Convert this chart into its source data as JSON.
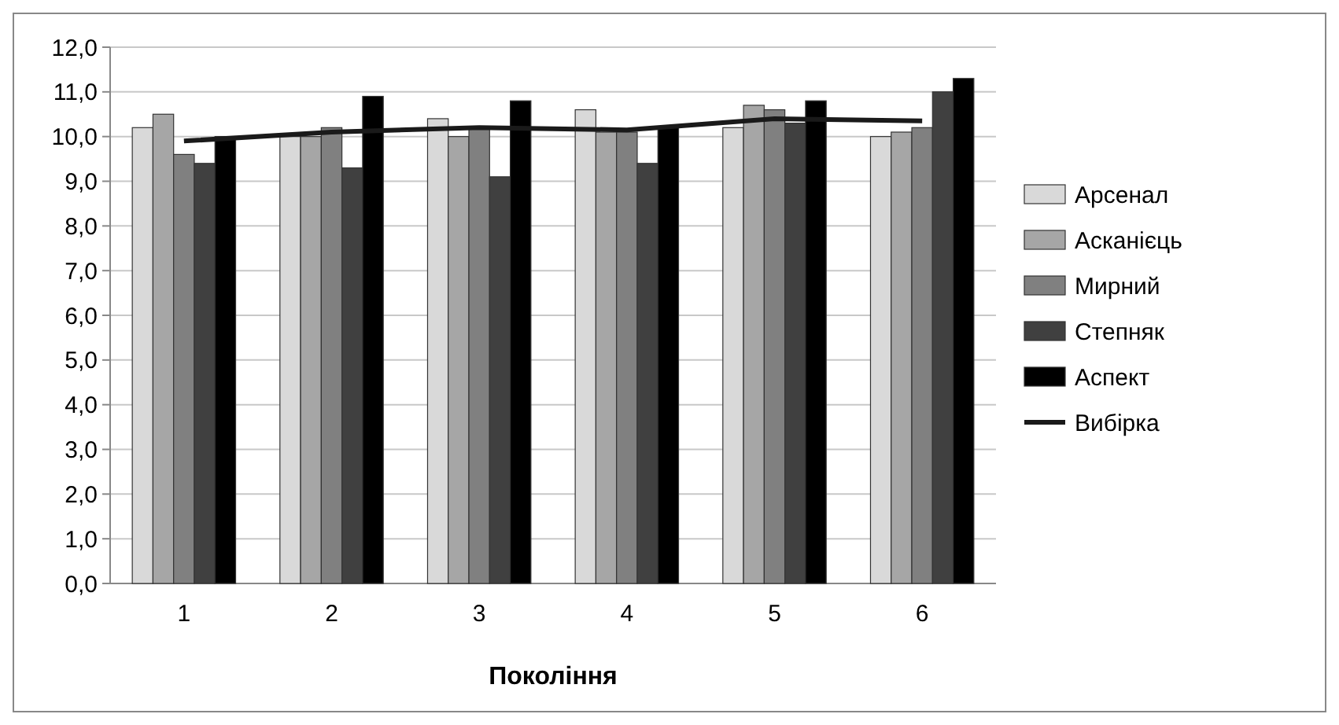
{
  "chart_data": {
    "type": "bar",
    "xlabel": "Покоління",
    "categories": [
      "1",
      "2",
      "3",
      "4",
      "5",
      "6"
    ],
    "ylim": [
      0,
      12
    ],
    "yticks": [
      {
        "value": 0,
        "label": "0,0"
      },
      {
        "value": 1,
        "label": "1,0"
      },
      {
        "value": 2,
        "label": "2,0"
      },
      {
        "value": 3,
        "label": "3,0"
      },
      {
        "value": 4,
        "label": "4,0"
      },
      {
        "value": 5,
        "label": "5,0"
      },
      {
        "value": 6,
        "label": "6,0"
      },
      {
        "value": 7,
        "label": "7,0"
      },
      {
        "value": 8,
        "label": "8,0"
      },
      {
        "value": 9,
        "label": "9,0"
      },
      {
        "value": 10,
        "label": "10,0"
      },
      {
        "value": 11,
        "label": "11,0"
      },
      {
        "value": 12,
        "label": "12,0"
      }
    ],
    "grid": "y",
    "legend": "right",
    "series": [
      {
        "name": "Арсенал",
        "color": "#d9d9d9",
        "values": [
          10.2,
          10.0,
          10.4,
          10.6,
          10.2,
          10.0
        ]
      },
      {
        "name": "Асканієць",
        "color": "#a6a6a6",
        "values": [
          10.5,
          10.0,
          10.0,
          10.1,
          10.7,
          10.1
        ]
      },
      {
        "name": "Мирний",
        "color": "#808080",
        "values": [
          9.6,
          10.2,
          10.2,
          10.1,
          10.6,
          10.2
        ]
      },
      {
        "name": "Степняк",
        "color": "#404040",
        "values": [
          9.4,
          9.3,
          9.1,
          9.4,
          10.3,
          11.0
        ]
      },
      {
        "name": "Аспект",
        "color": "#000000",
        "values": [
          10.0,
          10.9,
          10.8,
          10.2,
          10.8,
          11.3
        ]
      },
      {
        "name": "Вибірка",
        "type": "line",
        "color": "#1a1a1a",
        "values": [
          9.9,
          10.1,
          10.2,
          10.15,
          10.4,
          10.35
        ]
      }
    ]
  }
}
